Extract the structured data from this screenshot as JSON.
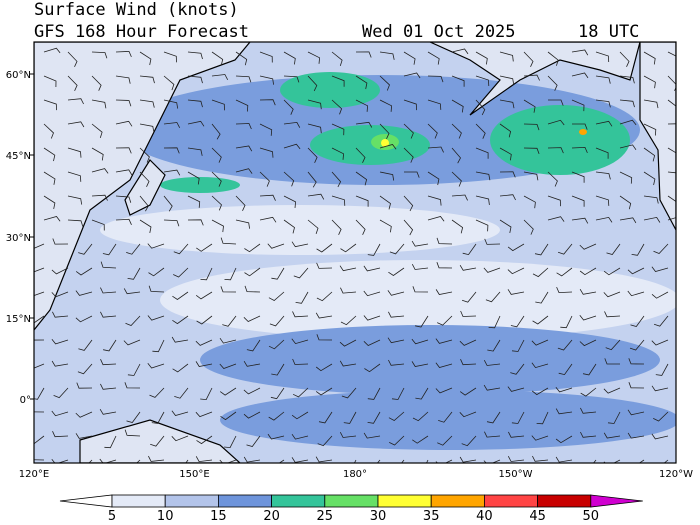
{
  "header": {
    "title": "Surface Wind (knots)",
    "subtitle": "GFS 168 Hour Forecast",
    "date": "Wed 01 Oct 2025",
    "time": "18 UTC"
  },
  "map": {
    "lat_labels": [
      "60°N",
      "45°N",
      "30°N",
      "15°N",
      "0°"
    ],
    "lon_labels": [
      "120°E",
      "150°E",
      "180°",
      "150°W",
      "120°W"
    ]
  },
  "colorbar": {
    "labels": [
      5,
      10,
      15,
      20,
      25,
      30,
      35,
      40,
      45,
      50
    ],
    "colors": [
      "#ffffff",
      "#e4eaf7",
      "#b3c4ea",
      "#6e94db",
      "#34c49a",
      "#66e066",
      "#ffff33",
      "#ffa500",
      "#ff4444",
      "#c80000",
      "#d000d0"
    ]
  }
}
